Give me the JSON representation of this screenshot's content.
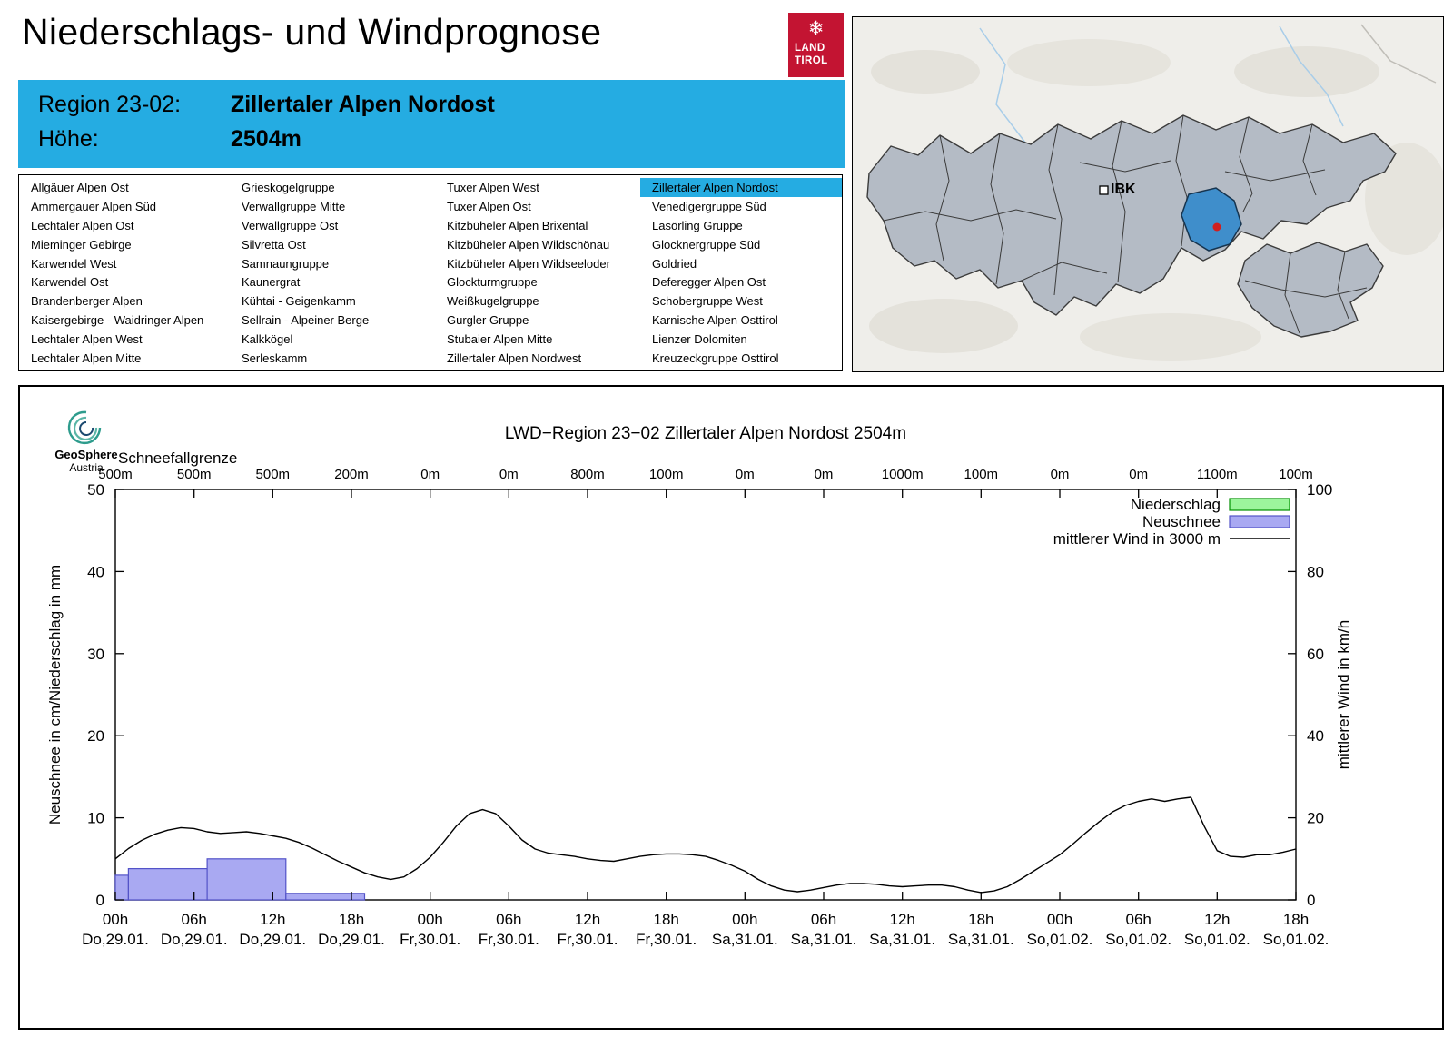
{
  "page": {
    "title": "Niederschlags- und Windprognose"
  },
  "logo": {
    "snowflake": "❄",
    "land": "LAND",
    "tirol": "TIROL",
    "color": "#c31432"
  },
  "region_header": {
    "region_label": "Region 23-02:",
    "region_value": "Zillertaler Alpen Nordost",
    "altitude_label": "Höhe:",
    "altitude_value": "2504m",
    "bg_color": "#25ace2"
  },
  "region_list": {
    "selected": "Zillertaler Alpen Nordost",
    "columns": [
      [
        "Allgäuer Alpen Ost",
        "Ammergauer Alpen Süd",
        "Lechtaler Alpen Ost",
        "Mieminger Gebirge",
        "Karwendel West",
        "Karwendel Ost",
        "Brandenberger Alpen",
        "Kaisergebirge - Waidringer Alpen",
        "Lechtaler Alpen West",
        "Lechtaler Alpen Mitte"
      ],
      [
        "Grieskogelgruppe",
        "Verwallgruppe Mitte",
        "Verwallgruppe Ost",
        "Silvretta Ost",
        "Samnaungruppe",
        "Kaunergrat",
        "Kühtai - Geigenkamm",
        "Sellrain - Alpeiner Berge",
        "Kalkkögel",
        "Serleskamm"
      ],
      [
        "Tuxer Alpen West",
        "Tuxer Alpen Ost",
        "Kitzbüheler Alpen Brixental",
        "Kitzbüheler Alpen Wildschönau",
        "Kitzbüheler Alpen Wildseeloder",
        "Glockturmgruppe",
        "Weißkugelgruppe",
        "Gurgler Gruppe",
        "Stubaier Alpen Mitte",
        "Zillertaler Alpen Nordwest"
      ],
      [
        "Zillertaler Alpen Nordost",
        "Venedigergruppe Süd",
        "Lasörling Gruppe",
        "Glocknergruppe Süd",
        "Goldried",
        "Deferegger Alpen Ost",
        "Schobergruppe West",
        "Karnische Alpen Osttirol",
        "Lienzer Dolomiten",
        "Kreuzeckgruppe Osttirol"
      ]
    ]
  },
  "map": {
    "label_ibk": "IBK",
    "highlight_color": "#3f8ecb",
    "region_fill": "#b4bbc5"
  },
  "branding": {
    "geosphere": "GeoSphere",
    "austria": "Austria"
  },
  "chart_data": {
    "type": "composite bar+line",
    "title": "LWD−Region 23−02 Zillertaler Alpen Nordost 2504m",
    "snowline_label": "Schneefallgrenze",
    "snowline_values": [
      "500m",
      "500m",
      "500m",
      "200m",
      "0m",
      "0m",
      "800m",
      "100m",
      "0m",
      "0m",
      "1000m",
      "100m",
      "0m",
      "0m",
      "1100m",
      "100m"
    ],
    "ylabel_left": "Neuschnee in cm/Niederschlag in mm",
    "ylabel_right": "mittlerer Wind in km/h",
    "ylim_left": [
      0,
      50
    ],
    "ylim_right": [
      0,
      100
    ],
    "grid": false,
    "legend_position": "top-right",
    "x_hours_range": [
      0,
      90
    ],
    "x_ticks": [
      {
        "time": "00h",
        "date": "Do,29.01."
      },
      {
        "time": "06h",
        "date": "Do,29.01."
      },
      {
        "time": "12h",
        "date": "Do,29.01."
      },
      {
        "time": "18h",
        "date": "Do,29.01."
      },
      {
        "time": "00h",
        "date": "Fr,30.01."
      },
      {
        "time": "06h",
        "date": "Fr,30.01."
      },
      {
        "time": "12h",
        "date": "Fr,30.01."
      },
      {
        "time": "18h",
        "date": "Fr,30.01."
      },
      {
        "time": "00h",
        "date": "Sa,31.01."
      },
      {
        "time": "06h",
        "date": "Sa,31.01."
      },
      {
        "time": "12h",
        "date": "Sa,31.01."
      },
      {
        "time": "18h",
        "date": "Sa,31.01."
      },
      {
        "time": "00h",
        "date": "So,01.02."
      },
      {
        "time": "06h",
        "date": "So,01.02."
      },
      {
        "time": "12h",
        "date": "So,01.02."
      },
      {
        "time": "18h",
        "date": "So,01.02."
      }
    ],
    "legend": [
      {
        "label": "Niederschlag",
        "swatch": "niederschlag"
      },
      {
        "label": "Neuschnee",
        "swatch": "neuschnee"
      },
      {
        "label": "mittlerer Wind in 3000 m",
        "swatch": "line"
      }
    ],
    "colors": {
      "niederschlag_fill": "#9cf59c",
      "niederschlag_stroke": "#009000",
      "neuschnee_fill": "#a9a9f2",
      "neuschnee_stroke": "#5353c8",
      "wind": "#000000",
      "accent_cyan": "#25ace2"
    },
    "niederschlag_bars": [],
    "neuschnee_bars": [
      {
        "from": 0,
        "to": 1,
        "value": 3
      },
      {
        "from": 1,
        "to": 7,
        "value": 3.8
      },
      {
        "from": 7,
        "to": 13,
        "value": 5
      },
      {
        "from": 13,
        "to": 19,
        "value": 0.8
      }
    ],
    "wind_kmh": {
      "t_step_h": 1,
      "values": [
        10,
        12.5,
        14.5,
        16,
        17,
        17.6,
        17.4,
        16.6,
        16.2,
        16.4,
        16.6,
        16.2,
        15.6,
        15,
        14,
        12.6,
        11,
        9.4,
        8,
        6.6,
        5.6,
        5,
        5.6,
        7.6,
        10.4,
        14,
        18,
        21,
        22,
        21,
        18,
        14.6,
        12.4,
        11.4,
        11,
        10.6,
        10,
        9.6,
        9.4,
        10,
        10.6,
        11,
        11.2,
        11.2,
        11,
        10.6,
        9.6,
        8.4,
        7,
        5,
        3.4,
        2.4,
        2,
        2.4,
        3,
        3.6,
        4,
        4,
        3.8,
        3.4,
        3.2,
        3.4,
        3.6,
        3.6,
        3.2,
        2.4,
        1.8,
        2.2,
        3.2,
        5,
        7,
        9,
        11,
        13.6,
        16.4,
        19,
        21.4,
        23,
        24,
        24.6,
        24,
        24.6,
        25,
        18,
        12,
        10.6,
        10.4,
        11,
        11,
        11.6,
        12.4
      ]
    }
  }
}
